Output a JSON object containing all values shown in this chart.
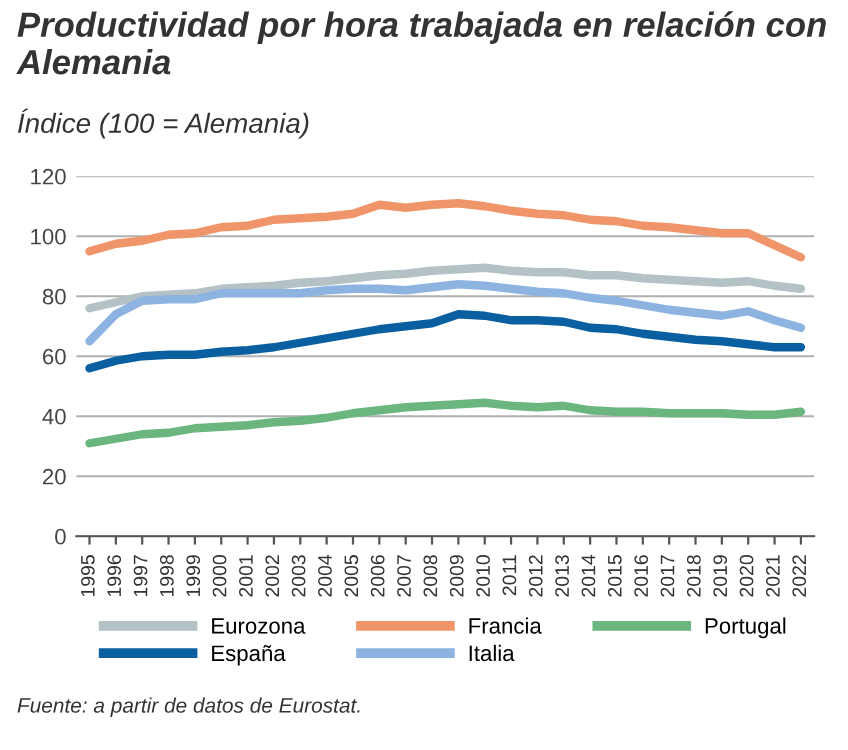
{
  "chart_data": {
    "type": "line",
    "title": "Productividad por hora trabajada en relación con Alemania",
    "subtitle": "Índice (100 = Alemania)",
    "categories": [
      "1995",
      "1996",
      "1997",
      "1998",
      "1999",
      "2000",
      "2001",
      "2002",
      "2003",
      "2004",
      "2005",
      "2006",
      "2007",
      "2008",
      "2009",
      "2010",
      "2011",
      "2012",
      "2013",
      "2014",
      "2015",
      "2016",
      "2017",
      "2018",
      "2019",
      "2020",
      "2021",
      "2022"
    ],
    "series": [
      {
        "name": "Eurozona",
        "color": "#b4c2c6",
        "values": [
          76,
          78,
          80,
          80.5,
          81,
          82.5,
          83,
          83.5,
          84.5,
          85,
          86,
          87,
          87.5,
          88.5,
          89,
          89.5,
          88.5,
          88,
          88,
          87,
          87,
          86,
          85.5,
          85,
          84.5,
          85,
          83.5,
          82.5
        ]
      },
      {
        "name": "España",
        "color": "#0a5fa0",
        "values": [
          56,
          58.5,
          60,
          60.5,
          60.5,
          61.5,
          62,
          63,
          64.5,
          66,
          67.5,
          69,
          70,
          71,
          74,
          73.5,
          72,
          72,
          71.5,
          69.5,
          69,
          67.5,
          66.5,
          65.5,
          65,
          64,
          63,
          63
        ]
      },
      {
        "name": "Francia",
        "color": "#f0956a",
        "values": [
          95,
          97.5,
          98.5,
          100.5,
          101,
          103,
          103.5,
          105.5,
          106,
          106.5,
          107.5,
          110.5,
          109.5,
          110.5,
          111,
          110,
          108.5,
          107.5,
          107,
          105.5,
          105,
          103.5,
          103,
          102,
          101,
          101,
          97,
          93
        ]
      },
      {
        "name": "Italia",
        "color": "#8db3e0",
        "values": [
          65,
          74,
          78.5,
          79,
          79,
          81,
          81,
          81,
          81,
          82,
          82.5,
          82.5,
          82,
          83,
          84,
          83.5,
          82.5,
          81.5,
          81,
          79.5,
          78.5,
          77,
          75.5,
          74.5,
          73.5,
          75,
          72,
          69.5
        ]
      },
      {
        "name": "Portugal",
        "color": "#6bb57f",
        "values": [
          31,
          32.5,
          34,
          34.5,
          36,
          36.5,
          37,
          38,
          38.5,
          39.5,
          41,
          42,
          43,
          43.5,
          44,
          44.5,
          43.5,
          43,
          43.5,
          42,
          41.5,
          41.5,
          41,
          41,
          41,
          40.5,
          40.5,
          41.5
        ]
      }
    ],
    "ylim": [
      0,
      120
    ],
    "yticks": [
      0,
      20,
      40,
      60,
      80,
      100,
      120
    ],
    "grid": "y",
    "legend": "bottom",
    "marker": "none",
    "line_style": "solid",
    "annotations": [
      "Fuente: a partir de datos de Eurostat."
    ]
  }
}
